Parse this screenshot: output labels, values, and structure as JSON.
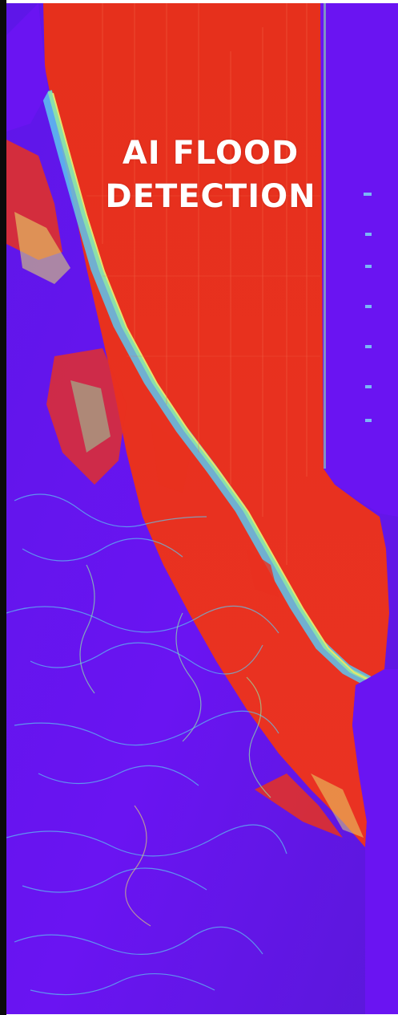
{
  "banner": {
    "title_line_1": "AI FLOOD",
    "title_line_2": "DETECTION"
  },
  "map": {
    "style": "false-color flood probability raster",
    "colors": {
      "water_flooded": "#e8311f",
      "dry_land": "#6a14f2",
      "transition_cyan": "#5cc6f0",
      "transition_green": "#8ee6a5",
      "transition_yellow": "#e7e46c",
      "frame_edge": "#0b0b0b"
    }
  }
}
